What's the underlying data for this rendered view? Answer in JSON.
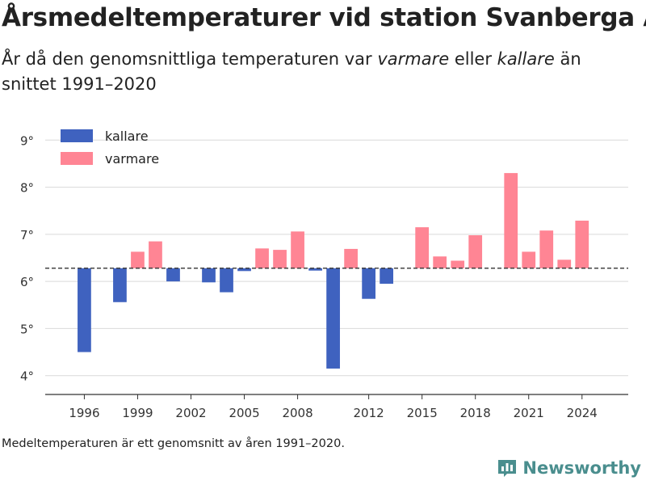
{
  "header": {
    "title": "Årsmedeltemperaturer vid station Svanberga A",
    "subtitle_pre": "År då den genomsnittliga temperaturen var ",
    "subtitle_warm": "varmare",
    "subtitle_mid": " eller ",
    "subtitle_cold": "kallare",
    "subtitle_post": " än snittet 1991–2020"
  },
  "footnote": "Medeltemperaturen är ett genomsnitt av åren 1991–2020.",
  "brand": {
    "name": "Newsworthy",
    "icon": "newsworthy-logo-icon",
    "color": "#4a8e8e"
  },
  "chart_data": {
    "type": "bar",
    "baseline": 6.28,
    "ylim": [
      3.6,
      9.4
    ],
    "yticks": [
      4,
      5,
      6,
      7,
      8,
      9
    ],
    "ytick_labels": [
      "4°",
      "5°",
      "6°",
      "7°",
      "8°",
      "9°"
    ],
    "xlim": [
      1993.8,
      2026.6
    ],
    "xticks": [
      1996,
      1999,
      2002,
      2005,
      2008,
      2012,
      2015,
      2018,
      2021,
      2024
    ],
    "xtick_labels": [
      "1996",
      "1999",
      "2002",
      "2005",
      "2008",
      "2012",
      "2015",
      "2018",
      "2021",
      "2024"
    ],
    "grid": true,
    "legend_position": "top-left",
    "series": [
      {
        "name": "kallare",
        "color": "#3f62bf"
      },
      {
        "name": "varmare",
        "color": "#ff8594"
      }
    ],
    "x": [
      1996,
      1998,
      1999,
      2000,
      2001,
      2003,
      2004,
      2005,
      2006,
      2007,
      2008,
      2009,
      2010,
      2011,
      2012,
      2013,
      2015,
      2016,
      2017,
      2018,
      2020,
      2021,
      2022,
      2023,
      2024
    ],
    "values": [
      4.5,
      5.56,
      6.63,
      6.85,
      6.0,
      5.98,
      5.77,
      6.22,
      6.7,
      6.67,
      7.06,
      6.23,
      4.15,
      6.69,
      5.63,
      5.95,
      7.15,
      6.53,
      6.44,
      6.98,
      8.3,
      6.63,
      7.08,
      6.46,
      7.29
    ]
  }
}
